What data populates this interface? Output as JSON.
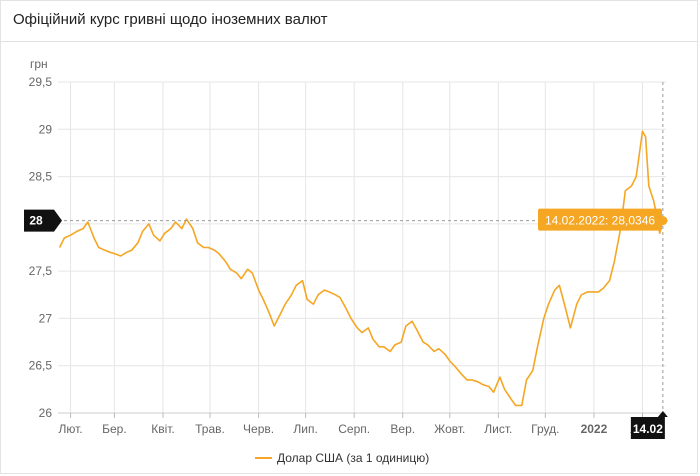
{
  "header": {
    "title": "Офіційний курс гривні щодо іноземних валют"
  },
  "colors": {
    "series": "#f5a623",
    "tooltip_bg": "#f5a623",
    "badge_bg": "#111111",
    "grid": "#e6e6e6"
  },
  "chart_data": {
    "type": "line",
    "ylabel": "грн",
    "ylim": [
      26,
      29.5
    ],
    "yticks": [
      "26",
      "26,5",
      "27",
      "27,5",
      "28",
      "28,5",
      "29",
      "29,5"
    ],
    "ytick_values": [
      26,
      26.5,
      27,
      27.5,
      28,
      28.5,
      29,
      29.5
    ],
    "x_labels": [
      "Лют.",
      "Бер.",
      "Квіт.",
      "Трав.",
      "Черв.",
      "Лип.",
      "Серп.",
      "Вер.",
      "Жовт.",
      "Лист.",
      "Груд.",
      "2022",
      "Лют."
    ],
    "x_label_values": [
      "2021-02",
      "2021-03",
      "2021-04",
      "2021-05",
      "2021-06",
      "2021-07",
      "2021-08",
      "2021-09",
      "2021-10",
      "2021-11",
      "2021-12",
      "2022-01",
      "2022-02"
    ],
    "xlim": [
      "2021-01-24",
      "2022-02-16"
    ],
    "crosshair": {
      "y_label": "28",
      "x_label": "14.02",
      "y": 28.0346
    },
    "tooltip": "14.02.2022: 28,0346",
    "series": [
      {
        "name": "Долар США (за 1 одиницю)",
        "points": [
          [
            "2021-01-25",
            27.75
          ],
          [
            "2021-01-28",
            27.85
          ],
          [
            "2021-02-01",
            27.88
          ],
          [
            "2021-02-05",
            27.92
          ],
          [
            "2021-02-09",
            27.95
          ],
          [
            "2021-02-12",
            28.02
          ],
          [
            "2021-02-16",
            27.85
          ],
          [
            "2021-02-19",
            27.75
          ],
          [
            "2021-02-23",
            27.72
          ],
          [
            "2021-02-26",
            27.7
          ],
          [
            "2021-03-02",
            27.68
          ],
          [
            "2021-03-05",
            27.66
          ],
          [
            "2021-03-09",
            27.7
          ],
          [
            "2021-03-12",
            27.72
          ],
          [
            "2021-03-16",
            27.8
          ],
          [
            "2021-03-19",
            27.92
          ],
          [
            "2021-03-23",
            28.0
          ],
          [
            "2021-03-26",
            27.88
          ],
          [
            "2021-03-30",
            27.82
          ],
          [
            "2021-04-02",
            27.9
          ],
          [
            "2021-04-06",
            27.95
          ],
          [
            "2021-04-09",
            28.02
          ],
          [
            "2021-04-13",
            27.95
          ],
          [
            "2021-04-16",
            28.05
          ],
          [
            "2021-04-20",
            27.95
          ],
          [
            "2021-04-23",
            27.8
          ],
          [
            "2021-04-27",
            27.75
          ],
          [
            "2021-04-30",
            27.75
          ],
          [
            "2021-05-04",
            27.72
          ],
          [
            "2021-05-07",
            27.68
          ],
          [
            "2021-05-11",
            27.6
          ],
          [
            "2021-05-14",
            27.52
          ],
          [
            "2021-05-18",
            27.48
          ],
          [
            "2021-05-21",
            27.42
          ],
          [
            "2021-05-25",
            27.52
          ],
          [
            "2021-05-28",
            27.48
          ],
          [
            "2021-06-01",
            27.3
          ],
          [
            "2021-06-04",
            27.2
          ],
          [
            "2021-06-08",
            27.05
          ],
          [
            "2021-06-11",
            26.92
          ],
          [
            "2021-06-15",
            27.05
          ],
          [
            "2021-06-18",
            27.15
          ],
          [
            "2021-06-22",
            27.25
          ],
          [
            "2021-06-25",
            27.35
          ],
          [
            "2021-06-29",
            27.4
          ],
          [
            "2021-07-02",
            27.2
          ],
          [
            "2021-07-06",
            27.15
          ],
          [
            "2021-07-09",
            27.25
          ],
          [
            "2021-07-13",
            27.3
          ],
          [
            "2021-07-16",
            27.28
          ],
          [
            "2021-07-20",
            27.25
          ],
          [
            "2021-07-23",
            27.22
          ],
          [
            "2021-07-27",
            27.1
          ],
          [
            "2021-07-30",
            27.0
          ],
          [
            "2021-08-03",
            26.9
          ],
          [
            "2021-08-06",
            26.85
          ],
          [
            "2021-08-10",
            26.9
          ],
          [
            "2021-08-13",
            26.78
          ],
          [
            "2021-08-17",
            26.7
          ],
          [
            "2021-08-20",
            26.7
          ],
          [
            "2021-08-24",
            26.65
          ],
          [
            "2021-08-27",
            26.72
          ],
          [
            "2021-08-31",
            26.75
          ],
          [
            "2021-09-03",
            26.92
          ],
          [
            "2021-09-07",
            26.97
          ],
          [
            "2021-09-10",
            26.88
          ],
          [
            "2021-09-14",
            26.75
          ],
          [
            "2021-09-17",
            26.72
          ],
          [
            "2021-09-21",
            26.65
          ],
          [
            "2021-09-24",
            26.68
          ],
          [
            "2021-09-28",
            26.62
          ],
          [
            "2021-10-01",
            26.55
          ],
          [
            "2021-10-05",
            26.48
          ],
          [
            "2021-10-08",
            26.42
          ],
          [
            "2021-10-12",
            26.35
          ],
          [
            "2021-10-15",
            26.35
          ],
          [
            "2021-10-19",
            26.33
          ],
          [
            "2021-10-22",
            26.3
          ],
          [
            "2021-10-26",
            26.28
          ],
          [
            "2021-10-29",
            26.22
          ],
          [
            "2021-11-02",
            26.38
          ],
          [
            "2021-11-05",
            26.25
          ],
          [
            "2021-11-09",
            26.15
          ],
          [
            "2021-11-12",
            26.08
          ],
          [
            "2021-11-16",
            26.08
          ],
          [
            "2021-11-19",
            26.35
          ],
          [
            "2021-11-23",
            26.45
          ],
          [
            "2021-11-26",
            26.7
          ],
          [
            "2021-11-30",
            27.0
          ],
          [
            "2021-12-03",
            27.15
          ],
          [
            "2021-12-07",
            27.3
          ],
          [
            "2021-12-10",
            27.35
          ],
          [
            "2021-12-14",
            27.1
          ],
          [
            "2021-12-17",
            26.9
          ],
          [
            "2021-12-21",
            27.15
          ],
          [
            "2021-12-24",
            27.25
          ],
          [
            "2021-12-28",
            27.28
          ],
          [
            "2021-12-31",
            27.28
          ],
          [
            "2022-01-04",
            27.28
          ],
          [
            "2022-01-07",
            27.32
          ],
          [
            "2022-01-11",
            27.4
          ],
          [
            "2022-01-14",
            27.6
          ],
          [
            "2022-01-18",
            27.95
          ],
          [
            "2022-01-21",
            28.35
          ],
          [
            "2022-01-25",
            28.4
          ],
          [
            "2022-01-28",
            28.5
          ],
          [
            "2022-02-01",
            28.98
          ],
          [
            "2022-02-03",
            28.92
          ],
          [
            "2022-02-05",
            28.4
          ],
          [
            "2022-02-08",
            28.25
          ],
          [
            "2022-02-10",
            28.1
          ],
          [
            "2022-02-12",
            27.9
          ],
          [
            "2022-02-14",
            28.0346
          ]
        ]
      }
    ]
  }
}
